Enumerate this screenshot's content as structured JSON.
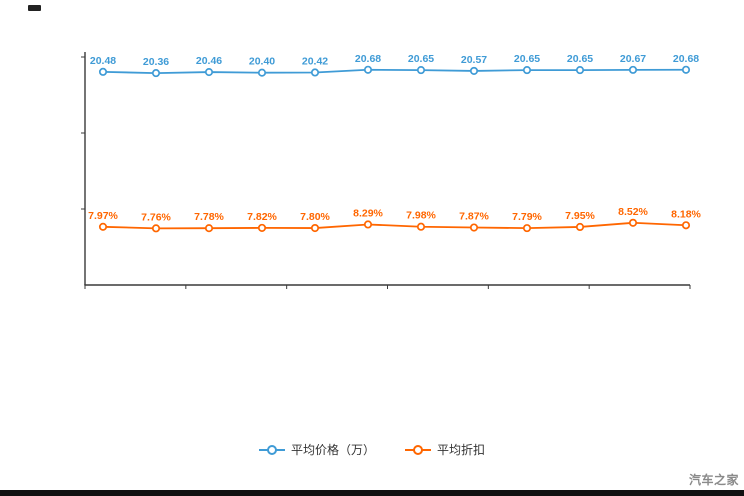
{
  "chart_data": {
    "type": "line",
    "title": "",
    "x_tick_labels": [],
    "series": [
      {
        "name": "平均价格（万）",
        "color": "#3f9bd6",
        "axis": "left",
        "label_suffix": "",
        "values": [
          20.48,
          20.36,
          20.46,
          20.4,
          20.42,
          20.68,
          20.65,
          20.57,
          20.65,
          20.65,
          20.67,
          20.68
        ]
      },
      {
        "name": "平均折扣",
        "color": "#ff6600",
        "axis": "right",
        "label_suffix": "%",
        "values": [
          7.97,
          7.76,
          7.78,
          7.82,
          7.8,
          8.29,
          7.98,
          7.87,
          7.79,
          7.95,
          8.52,
          8.18
        ]
      }
    ],
    "ylim_left": [
      0,
      22.1
    ],
    "ylim_right": [
      0,
      31.5
    ],
    "grid": false,
    "legend_position": "bottom",
    "marker_style": "hollow-circle"
  },
  "watermark": {
    "text": "汽车之家"
  }
}
